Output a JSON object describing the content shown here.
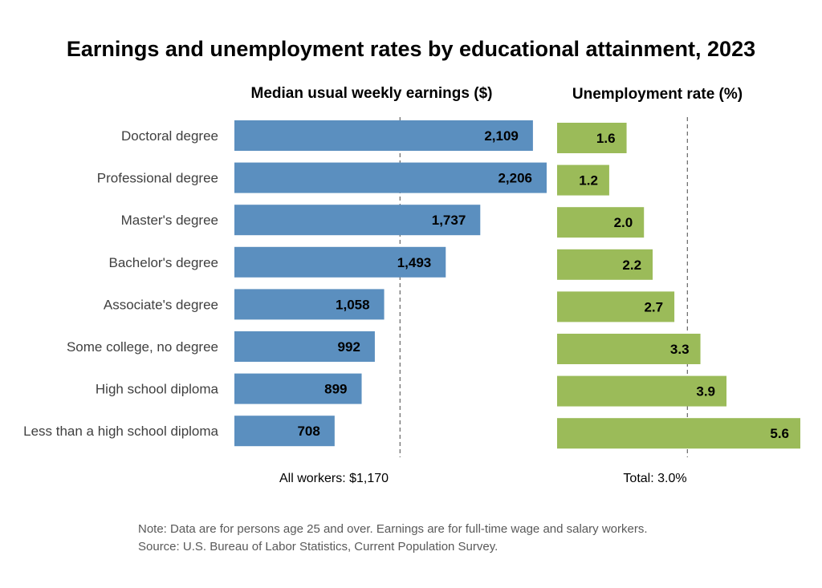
{
  "chart_data": {
    "type": "bar",
    "title": "Earnings and unemployment rates by educational attainment, 2023",
    "categories": [
      "Doctoral degree",
      "Professional degree",
      "Master's degree",
      "Bachelor's degree",
      "Associate's degree",
      "Some college, no degree",
      "High school diploma",
      "Less than a high school diploma"
    ],
    "panels": [
      {
        "title": "Median usual weekly earnings ($)",
        "orientation": "horizontal",
        "color": "#5b8fbf",
        "values": [
          2109,
          2206,
          1737,
          1493,
          1058,
          992,
          899,
          708
        ],
        "value_labels": [
          "2,109",
          "2,206",
          "1,737",
          "1,493",
          "1,058",
          "992",
          "899",
          "708"
        ],
        "xlim": [
          0,
          2206
        ],
        "reference": {
          "value": 1170,
          "label": "All workers: $1,170"
        }
      },
      {
        "title": "Unemployment rate (%)",
        "orientation": "horizontal",
        "color": "#9bbb59",
        "values": [
          1.6,
          1.2,
          2.0,
          2.2,
          2.7,
          3.3,
          3.9,
          5.6
        ],
        "value_labels": [
          "1.6",
          "1.2",
          "2.0",
          "2.2",
          "2.7",
          "3.3",
          "3.9",
          "5.6"
        ],
        "xlim": [
          0,
          5.6
        ],
        "reference": {
          "value": 3.0,
          "label": "Total: 3.0%"
        }
      }
    ],
    "notes": [
      "Note: Data are for persons age 25 and over. Earnings are for full-time wage and salary workers.",
      "Source: U.S. Bureau of Labor Statistics, Current Population Survey."
    ],
    "grid": false,
    "legend": "none"
  }
}
